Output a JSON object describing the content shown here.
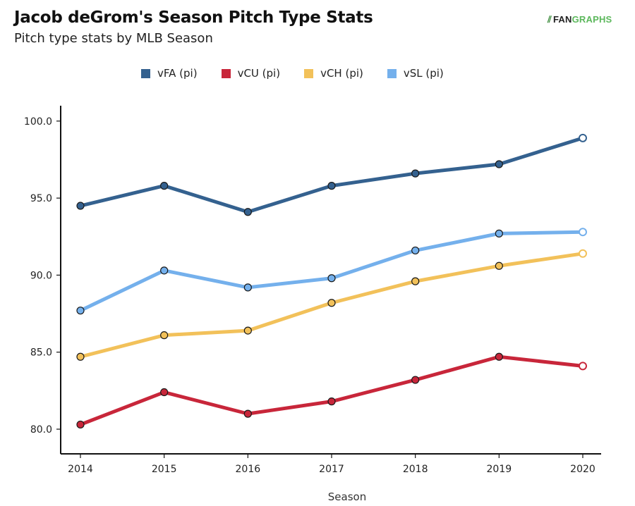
{
  "header": {
    "title": "Jacob deGrom's Season Pitch Type Stats",
    "subtitle": "Pitch type stats by MLB Season",
    "logo_text_1": "FAN",
    "logo_text_2": "GRAPHS"
  },
  "chart_data": {
    "type": "line",
    "title": "Jacob deGrom's Season Pitch Type Stats",
    "subtitle": "Pitch type stats by MLB Season",
    "xlabel": "Season",
    "ylabel": "",
    "x": [
      2014,
      2015,
      2016,
      2017,
      2018,
      2019,
      2020
    ],
    "x_tick_labels": [
      "2014",
      "2015",
      "2016",
      "2017",
      "2018",
      "2019",
      "2020"
    ],
    "y_ticks": [
      80,
      85,
      90,
      95,
      100
    ],
    "y_tick_labels": [
      "80.0",
      "85.0",
      "90.0",
      "95.0",
      "100.0"
    ],
    "ylim": [
      78.4,
      101.0
    ],
    "grid": false,
    "legend_position": "top-center",
    "series": [
      {
        "name": "vFA (pi)",
        "color": "#34618f",
        "values": [
          94.5,
          95.8,
          94.1,
          95.8,
          96.6,
          97.2,
          98.9
        ],
        "open_last_marker": true
      },
      {
        "name": "vCU (pi)",
        "color": "#c8263a",
        "values": [
          80.3,
          82.4,
          81.0,
          81.8,
          83.2,
          84.7,
          84.1
        ],
        "open_last_marker": true
      },
      {
        "name": "vCH (pi)",
        "color": "#f2c15a",
        "values": [
          84.7,
          86.1,
          86.4,
          88.2,
          89.6,
          90.6,
          91.4
        ],
        "open_last_marker": true
      },
      {
        "name": "vSL (pi)",
        "color": "#74b0ec",
        "values": [
          87.7,
          90.3,
          89.2,
          89.8,
          91.6,
          92.7,
          92.8
        ],
        "open_last_marker": true
      }
    ]
  }
}
